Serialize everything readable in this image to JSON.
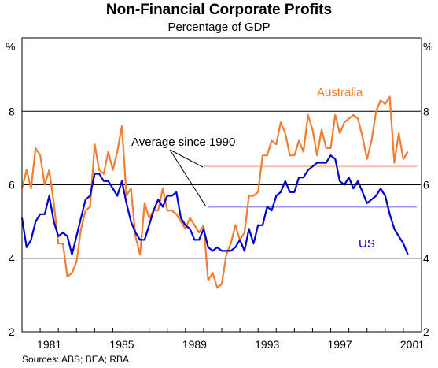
{
  "chart_data": {
    "type": "line",
    "title": "Non-Financial Corporate Profits",
    "subtitle": "Percentage of GDP",
    "y_unit_left": "%",
    "y_unit_right": "%",
    "ylim": [
      2,
      10
    ],
    "yticks": [
      2,
      4,
      6,
      8
    ],
    "xlim": [
      1980.0,
      2002.0
    ],
    "xticks": [
      1981,
      1985,
      1989,
      1993,
      1997,
      2001
    ],
    "xtick_labels": [
      "1981",
      "1985",
      "1989",
      "1993",
      "1997",
      "2001"
    ],
    "grid": "horizontal",
    "source": "Sources: ABS; BEA; RBA",
    "annotation": "Average since 1990",
    "colors": {
      "australia": "#f07d31",
      "us": "#0000cc",
      "australia_avg": "#f9c29b",
      "us_avg": "#9999ee",
      "grid": "#000000"
    },
    "series": [
      {
        "name": "Australia",
        "color": "#f07d31",
        "x": [
          1980.0,
          1980.25,
          1980.5,
          1980.75,
          1981.0,
          1981.25,
          1981.5,
          1981.75,
          1982.0,
          1982.25,
          1982.5,
          1982.75,
          1983.0,
          1983.25,
          1983.5,
          1983.75,
          1984.0,
          1984.25,
          1984.5,
          1984.75,
          1985.0,
          1985.25,
          1985.5,
          1985.75,
          1986.0,
          1986.25,
          1986.5,
          1986.75,
          1987.0,
          1987.25,
          1987.5,
          1987.75,
          1988.0,
          1988.25,
          1988.5,
          1988.75,
          1989.0,
          1989.25,
          1989.5,
          1989.75,
          1990.0,
          1990.25,
          1990.5,
          1990.75,
          1991.0,
          1991.25,
          1991.5,
          1991.75,
          1992.0,
          1992.25,
          1992.5,
          1992.75,
          1993.0,
          1993.25,
          1993.5,
          1993.75,
          1994.0,
          1994.25,
          1994.5,
          1994.75,
          1995.0,
          1995.25,
          1995.5,
          1995.75,
          1996.0,
          1996.25,
          1996.5,
          1996.75,
          1997.0,
          1997.25,
          1997.5,
          1997.75,
          1998.0,
          1998.25,
          1998.5,
          1998.75,
          1999.0,
          1999.25,
          1999.5,
          1999.75,
          2000.0,
          2000.25,
          2000.5,
          2000.75,
          2001.0,
          2001.25
        ],
        "y": [
          5.9,
          6.4,
          5.9,
          7.0,
          6.8,
          6.0,
          6.4,
          5.5,
          4.4,
          4.4,
          3.5,
          3.6,
          3.9,
          4.8,
          5.3,
          5.4,
          7.1,
          6.4,
          6.3,
          6.9,
          6.4,
          6.9,
          7.6,
          5.7,
          5.9,
          4.6,
          4.1,
          5.5,
          5.1,
          5.3,
          5.3,
          5.9,
          5.3,
          5.3,
          5.2,
          5.0,
          4.8,
          5.1,
          4.9,
          4.7,
          4.9,
          3.4,
          3.6,
          3.2,
          3.3,
          4.1,
          4.4,
          4.9,
          4.5,
          4.7,
          5.7,
          5.7,
          5.8,
          6.8,
          6.8,
          7.2,
          7.1,
          7.7,
          7.4,
          6.8,
          6.8,
          7.2,
          6.9,
          7.9,
          7.5,
          6.8,
          7.5,
          7.0,
          7.0,
          7.9,
          7.4,
          7.7,
          7.8,
          7.9,
          7.8,
          7.3,
          6.7,
          7.2,
          8.0,
          8.3,
          8.2,
          8.4,
          6.6,
          7.4,
          6.7,
          6.9
        ]
      },
      {
        "name": "US",
        "color": "#0000cc",
        "x": [
          1980.0,
          1980.25,
          1980.5,
          1980.75,
          1981.0,
          1981.25,
          1981.5,
          1981.75,
          1982.0,
          1982.25,
          1982.5,
          1982.75,
          1983.0,
          1983.25,
          1983.5,
          1983.75,
          1984.0,
          1984.25,
          1984.5,
          1984.75,
          1985.0,
          1985.25,
          1985.5,
          1985.75,
          1986.0,
          1986.25,
          1986.5,
          1986.75,
          1987.0,
          1987.25,
          1987.5,
          1987.75,
          1988.0,
          1988.25,
          1988.5,
          1988.75,
          1989.0,
          1989.25,
          1989.5,
          1989.75,
          1990.0,
          1990.25,
          1990.5,
          1990.75,
          1991.0,
          1991.25,
          1991.5,
          1991.75,
          1992.0,
          1992.25,
          1992.5,
          1992.75,
          1993.0,
          1993.25,
          1993.5,
          1993.75,
          1994.0,
          1994.25,
          1994.5,
          1994.75,
          1995.0,
          1995.25,
          1995.5,
          1995.75,
          1996.0,
          1996.25,
          1996.5,
          1996.75,
          1997.0,
          1997.25,
          1997.5,
          1997.75,
          1998.0,
          1998.25,
          1998.5,
          1998.75,
          1999.0,
          1999.25,
          1999.5,
          1999.75,
          2000.0,
          2000.25,
          2000.5,
          2000.75,
          2001.0,
          2001.25
        ],
        "y": [
          5.1,
          4.3,
          4.5,
          5.0,
          5.2,
          5.2,
          5.7,
          5.0,
          4.6,
          4.7,
          4.6,
          4.1,
          4.6,
          5.1,
          5.6,
          5.7,
          6.3,
          6.3,
          6.1,
          6.1,
          5.9,
          5.7,
          6.1,
          5.5,
          5.0,
          4.7,
          4.5,
          4.5,
          4.9,
          5.3,
          5.6,
          5.4,
          5.7,
          5.7,
          5.8,
          5.1,
          4.9,
          4.8,
          4.5,
          4.5,
          4.8,
          4.3,
          4.2,
          4.3,
          4.2,
          4.2,
          4.2,
          4.3,
          4.5,
          4.2,
          4.8,
          4.4,
          4.9,
          4.9,
          5.4,
          5.3,
          5.7,
          5.8,
          6.1,
          5.8,
          5.8,
          6.2,
          6.2,
          6.4,
          6.5,
          6.6,
          6.6,
          6.6,
          6.8,
          6.7,
          6.1,
          6.0,
          6.2,
          5.9,
          6.1,
          5.8,
          5.5,
          5.6,
          5.7,
          5.9,
          5.7,
          5.2,
          4.8,
          4.6,
          4.4,
          4.1
        ]
      }
    ],
    "averages": [
      {
        "name": "Australia",
        "value": 6.5,
        "x_start": 1990.0,
        "x_end": 2001.75
      },
      {
        "name": "US",
        "value": 5.4,
        "x_start": 1990.25,
        "x_end": 2001.75
      }
    ]
  }
}
